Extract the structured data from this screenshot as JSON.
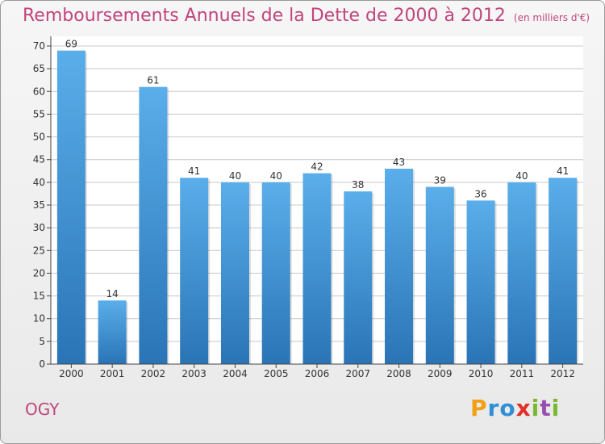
{
  "title": "Remboursements Annuels de la Dette de 2000 à 2012",
  "unit": "(en milliers d'€)",
  "commune": "OGY",
  "brand": {
    "letters": [
      "P",
      "r",
      "o",
      "x",
      "i",
      "t",
      "i"
    ],
    "colors": [
      "#f2a014",
      "#2f8fd6",
      "#2f8fd6",
      "#e0302a",
      "#7ab82f",
      "#9a4fb0",
      "#7ab82f"
    ]
  },
  "colors": {
    "title": "#c0457d",
    "bar_top": "#5aaeea",
    "bar_bottom": "#2a74b6",
    "grid": "#c8c8c8",
    "axis": "#444444"
  },
  "chart_data": {
    "type": "bar",
    "categories": [
      "2000",
      "2001",
      "2002",
      "2003",
      "2004",
      "2005",
      "2006",
      "2007",
      "2008",
      "2009",
      "2010",
      "2011",
      "2012"
    ],
    "values": [
      69,
      14,
      61,
      41,
      40,
      40,
      42,
      38,
      43,
      39,
      36,
      40,
      41
    ],
    "ylim": [
      0,
      70
    ],
    "yticks": [
      0,
      5,
      10,
      15,
      20,
      25,
      30,
      35,
      40,
      45,
      50,
      55,
      60,
      65,
      70
    ],
    "grid": true
  }
}
